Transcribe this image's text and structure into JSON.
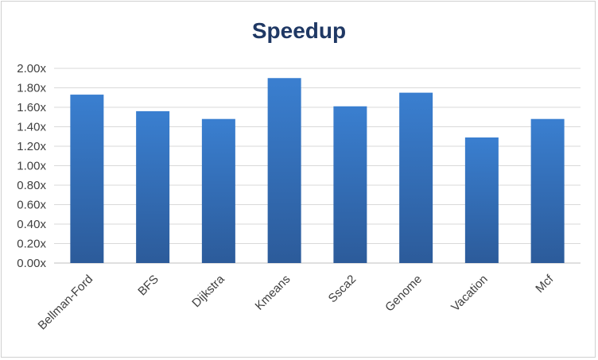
{
  "chart_data": {
    "type": "bar",
    "title": "Speedup",
    "categories": [
      "Bellman-Ford",
      "BFS",
      "Dijkstra",
      "Kmeans",
      "Ssca2",
      "Genome",
      "Vacation",
      "Mcf"
    ],
    "values": [
      1.73,
      1.56,
      1.48,
      1.9,
      1.61,
      1.75,
      1.29,
      1.48
    ],
    "yticks": [
      "0.00x",
      "0.20x",
      "0.40x",
      "0.60x",
      "0.80x",
      "1.00x",
      "1.20x",
      "1.40x",
      "1.60x",
      "1.80x",
      "2.00x"
    ],
    "ylim": [
      0,
      2.0
    ],
    "grid": true,
    "legend": "none",
    "colors": {
      "bar_top": "#3a7fd0",
      "bar_bottom": "#2c5b9a",
      "title": "#1f3864"
    }
  }
}
